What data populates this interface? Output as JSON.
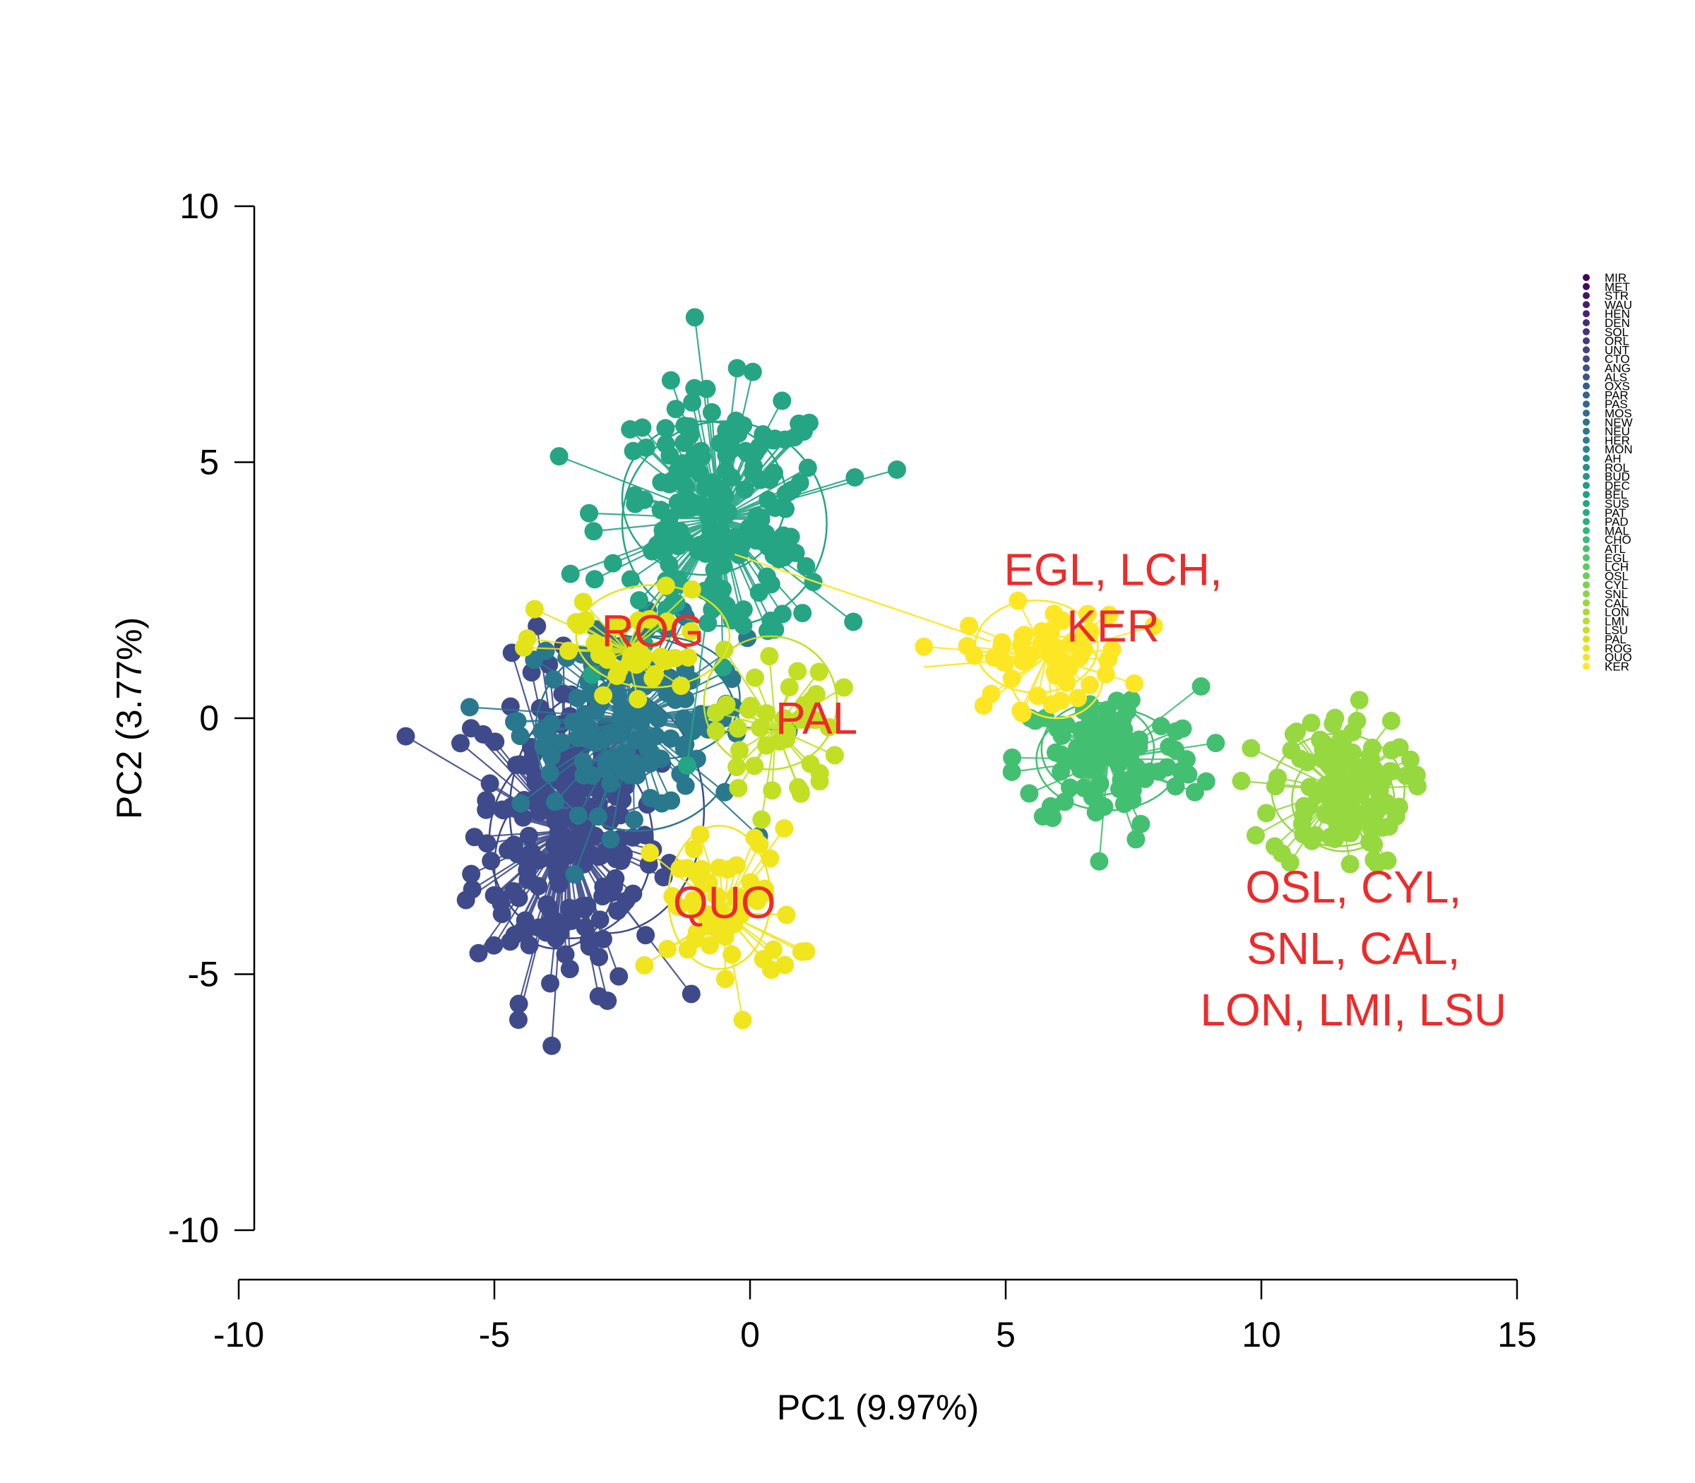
{
  "chart_data": {
    "type": "scatter",
    "title": "",
    "xlabel": "PC1 (9.97%)",
    "ylabel": "PC2 (3.77%)",
    "xlim": [
      -10,
      15
    ],
    "ylim": [
      -10,
      10
    ],
    "xticks": [
      -10,
      -5,
      0,
      5,
      10,
      15
    ],
    "yticks": [
      -10,
      -5,
      0,
      5,
      10
    ],
    "xtick_labels": [
      "-10",
      "-5",
      "0",
      "5",
      "10",
      "15"
    ],
    "ytick_labels": [
      "-10",
      "-5",
      "0",
      "5",
      "10"
    ],
    "grid": false,
    "legend_position": "top-right",
    "legend": [
      "MIR",
      "MET",
      "STR",
      "WAU",
      "HEN",
      "DEN",
      "SOL",
      "ORL",
      "UNT",
      "CTO",
      "ANG",
      "ALS",
      "OXS",
      "PAR",
      "PAS",
      "MOS",
      "NEW",
      "NEU",
      "HER",
      "MON",
      "AH",
      "ROL",
      "BUD",
      "DEC",
      "BEL",
      "SUS",
      "PAT",
      "PAD",
      "MAL",
      "CHO",
      "ATL",
      "EGL",
      "LCH",
      "OSL",
      "CYL",
      "SNL",
      "CAL",
      "LON",
      "LMI",
      "LSU",
      "PAL",
      "ROG",
      "QUO",
      "KER"
    ],
    "legend_colors": [
      "#440154",
      "#460a5d",
      "#471365",
      "#481c6e",
      "#482475",
      "#472c7a",
      "#46337f",
      "#443a83",
      "#424086",
      "#3f4788",
      "#3c4f8a",
      "#39558c",
      "#365c8d",
      "#33628d",
      "#30688e",
      "#2e6e8e",
      "#2c738e",
      "#2a798e",
      "#287f8e",
      "#26858e",
      "#248b8d",
      "#22908d",
      "#21958c",
      "#1f9b8a",
      "#1fa188",
      "#21a685",
      "#25ac82",
      "#2ab07f",
      "#31b57b",
      "#3bbb75",
      "#46c06f",
      "#52c569",
      "#5ec962",
      "#6ccd5a",
      "#7ad151",
      "#88d548",
      "#98d83e",
      "#a7db35",
      "#b8de29",
      "#c8e020",
      "#d8e219",
      "#e5e419",
      "#f1e51d",
      "#fde725"
    ],
    "annotations": [
      {
        "text": "EGL, LCH,",
        "x": 7.1,
        "y": 2.6
      },
      {
        "text": "KER",
        "x": 7.1,
        "y": 1.5
      },
      {
        "text": "ROG",
        "x": -1.9,
        "y": 1.4
      },
      {
        "text": "PAL",
        "x": 1.3,
        "y": -0.3
      },
      {
        "text": "QUO",
        "x": -0.5,
        "y": -3.9
      },
      {
        "text": "OSL, CYL,",
        "x": 11.8,
        "y": -3.6
      },
      {
        "text": "SNL, CAL,",
        "x": 11.8,
        "y": -4.8
      },
      {
        "text": "LON, LMI, LSU",
        "x": 11.8,
        "y": -6.0
      }
    ],
    "clusters": [
      {
        "name": "MIR–ANG",
        "color": "#3e4a89",
        "cx": -3.6,
        "cy": -2.2,
        "sx": 0.9,
        "sy": 1.6,
        "n": 220,
        "ellipses": [
          [
            -3.5,
            -2.4,
            1.6,
            1.9
          ],
          [
            -2.8,
            -1.8,
            1.9,
            2.4
          ],
          [
            -3.8,
            -2.9,
            1.2,
            1.6
          ]
        ]
      },
      {
        "name": "ALS–DEC",
        "color": "#2a788e",
        "cx": -2.3,
        "cy": 0.0,
        "sx": 1.1,
        "sy": 0.9,
        "n": 140,
        "ellipses": [
          [
            -2.2,
            -0.3,
            2.0,
            1.9
          ],
          [
            -1.8,
            0.4,
            1.6,
            1.2
          ]
        ]
      },
      {
        "name": "BEL–ATL",
        "color": "#25a584",
        "cx": -0.6,
        "cy": 3.9,
        "sx": 1.1,
        "sy": 1.2,
        "n": 200,
        "ellipses": [
          [
            -0.5,
            3.8,
            2.0,
            2.0
          ],
          [
            -0.9,
            4.3,
            1.6,
            1.5
          ]
        ]
      },
      {
        "name": "EGL, LCH",
        "color": "#43bf71",
        "cx": 7.0,
        "cy": -0.8,
        "sx": 0.9,
        "sy": 0.7,
        "n": 110,
        "ellipses": [
          [
            7.0,
            -0.8,
            1.4,
            1.0
          ],
          [
            6.8,
            -0.6,
            1.1,
            0.9
          ]
        ]
      },
      {
        "name": "OSL–LSU",
        "color": "#95d840",
        "cx": 11.5,
        "cy": -1.4,
        "sx": 0.65,
        "sy": 0.75,
        "n": 120,
        "ellipses": [
          [
            11.5,
            -1.4,
            1.3,
            1.1
          ],
          [
            11.6,
            -1.6,
            1.0,
            1.0
          ]
        ]
      },
      {
        "name": "PAL",
        "color": "#c2df23",
        "cx": 0.5,
        "cy": -0.2,
        "sx": 0.6,
        "sy": 0.8,
        "n": 40,
        "ellipses": [
          [
            0.4,
            0.3,
            1.3,
            1.3
          ]
        ]
      },
      {
        "name": "ROG",
        "color": "#e2e418",
        "cx": -2.4,
        "cy": 1.3,
        "sx": 0.9,
        "sy": 0.6,
        "n": 40,
        "ellipses": [
          [
            -1.9,
            1.6,
            1.5,
            1.0
          ]
        ]
      },
      {
        "name": "QUO",
        "color": "#f1e51d",
        "cx": -0.5,
        "cy": -3.8,
        "sx": 0.7,
        "sy": 0.8,
        "n": 60,
        "ellipses": [
          [
            -0.6,
            -3.5,
            1.0,
            1.4
          ]
        ]
      },
      {
        "name": "KER",
        "color": "#fde725",
        "cx": 5.8,
        "cy": 1.2,
        "sx": 0.8,
        "sy": 0.5,
        "n": 55,
        "ellipses": [
          [
            5.6,
            1.4,
            1.2,
            0.9
          ],
          [
            6.0,
            0.8,
            0.9,
            0.8
          ]
        ]
      }
    ]
  }
}
